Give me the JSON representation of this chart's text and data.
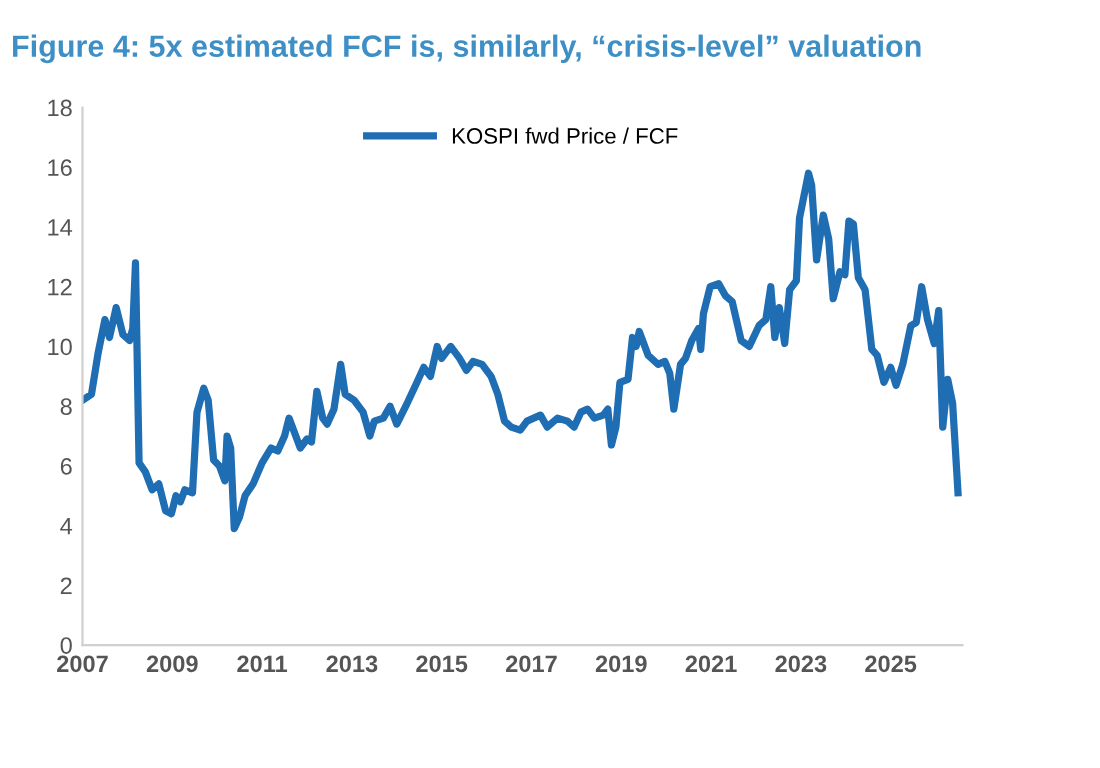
{
  "chart_data": {
    "type": "line",
    "title": "Figure 4: 5x estimated FCF is, similarly, “crisis-level” valuation",
    "x": [
      2007.0,
      2007.2,
      2007.35,
      2007.5,
      2007.6,
      2007.75,
      2007.9,
      2008.05,
      2008.12,
      2008.18,
      2008.26,
      2008.4,
      2008.55,
      2008.7,
      2008.85,
      2008.98,
      2009.08,
      2009.18,
      2009.28,
      2009.45,
      2009.55,
      2009.7,
      2009.8,
      2009.92,
      2010.05,
      2010.17,
      2010.22,
      2010.3,
      2010.38,
      2010.5,
      2010.62,
      2010.8,
      2011.0,
      2011.2,
      2011.35,
      2011.5,
      2011.6,
      2011.75,
      2011.85,
      2012.0,
      2012.1,
      2012.22,
      2012.35,
      2012.45,
      2012.6,
      2012.75,
      2012.85,
      2013.05,
      2013.25,
      2013.4,
      2013.5,
      2013.7,
      2013.85,
      2014.0,
      2014.2,
      2014.45,
      2014.6,
      2014.75,
      2014.9,
      2015.0,
      2015.2,
      2015.4,
      2015.55,
      2015.7,
      2015.9,
      2016.1,
      2016.25,
      2016.4,
      2016.55,
      2016.75,
      2016.9,
      2017.2,
      2017.35,
      2017.58,
      2017.8,
      2017.95,
      2018.1,
      2018.25,
      2018.4,
      2018.6,
      2018.7,
      2018.78,
      2018.88,
      2018.97,
      2019.15,
      2019.25,
      2019.33,
      2019.4,
      2019.6,
      2019.82,
      2019.97,
      2020.08,
      2020.17,
      2020.32,
      2020.43,
      2020.57,
      2020.72,
      2020.77,
      2020.83,
      2020.98,
      2021.17,
      2021.32,
      2021.47,
      2021.67,
      2021.85,
      2022.07,
      2022.22,
      2022.33,
      2022.42,
      2022.52,
      2022.64,
      2022.75,
      2022.9,
      2022.97,
      2023.17,
      2023.24,
      2023.35,
      2023.5,
      2023.62,
      2023.72,
      2023.87,
      2023.98,
      2024.07,
      2024.17,
      2024.28,
      2024.43,
      2024.58,
      2024.7,
      2024.85,
      2025.0,
      2025.12,
      2025.27,
      2025.45,
      2025.57,
      2025.69,
      2025.82,
      2025.97,
      2026.07,
      2026.16,
      2026.27,
      2026.38,
      2026.5
    ],
    "series": [
      {
        "name": "KOSPI fwd Price / FCF",
        "color": "#1f6db3",
        "values": [
          8.2,
          8.4,
          9.8,
          10.9,
          10.3,
          11.3,
          10.4,
          10.2,
          10.6,
          12.8,
          6.1,
          5.8,
          5.2,
          5.4,
          4.5,
          4.4,
          5.0,
          4.8,
          5.2,
          5.1,
          7.8,
          8.6,
          8.2,
          6.2,
          6.0,
          5.5,
          7.0,
          6.6,
          3.9,
          4.3,
          5.0,
          5.4,
          6.1,
          6.6,
          6.5,
          7.0,
          7.6,
          7.0,
          6.6,
          6.9,
          6.8,
          8.5,
          7.6,
          7.4,
          7.9,
          9.4,
          8.4,
          8.2,
          7.8,
          7.0,
          7.5,
          7.6,
          8.0,
          7.4,
          8.0,
          8.8,
          9.3,
          9.0,
          10.0,
          9.6,
          10.0,
          9.6,
          9.2,
          9.5,
          9.4,
          9.0,
          8.4,
          7.5,
          7.3,
          7.2,
          7.5,
          7.7,
          7.3,
          7.6,
          7.5,
          7.3,
          7.8,
          7.9,
          7.6,
          7.7,
          7.9,
          6.7,
          7.3,
          8.8,
          8.9,
          10.3,
          10.0,
          10.5,
          9.7,
          9.4,
          9.5,
          9.1,
          7.9,
          9.4,
          9.6,
          10.2,
          10.6,
          9.9,
          11.1,
          12.0,
          12.1,
          11.7,
          11.5,
          10.2,
          10.0,
          10.7,
          10.9,
          12.0,
          10.3,
          11.3,
          10.1,
          11.9,
          12.2,
          14.3,
          15.8,
          15.4,
          12.9,
          14.4,
          13.6,
          11.6,
          12.5,
          12.4,
          14.2,
          14.1,
          12.3,
          11.9,
          9.9,
          9.7,
          8.8,
          9.3,
          8.7,
          9.4,
          10.7,
          10.8,
          12.0,
          10.9,
          10.1,
          11.2,
          7.3,
          8.9,
          8.1,
          5.1
        ]
      }
    ],
    "xlim": [
      2007,
      2026.6
    ],
    "xticks": [
      2007,
      2009,
      2011,
      2013,
      2015,
      2017,
      2019,
      2021,
      2023,
      2025
    ],
    "ylim": [
      0,
      18
    ],
    "yticks": [
      0,
      2,
      4,
      6,
      8,
      10,
      12,
      14,
      16,
      18
    ],
    "grid": false,
    "legend": "top",
    "marker": "none",
    "line_style": "solid"
  }
}
